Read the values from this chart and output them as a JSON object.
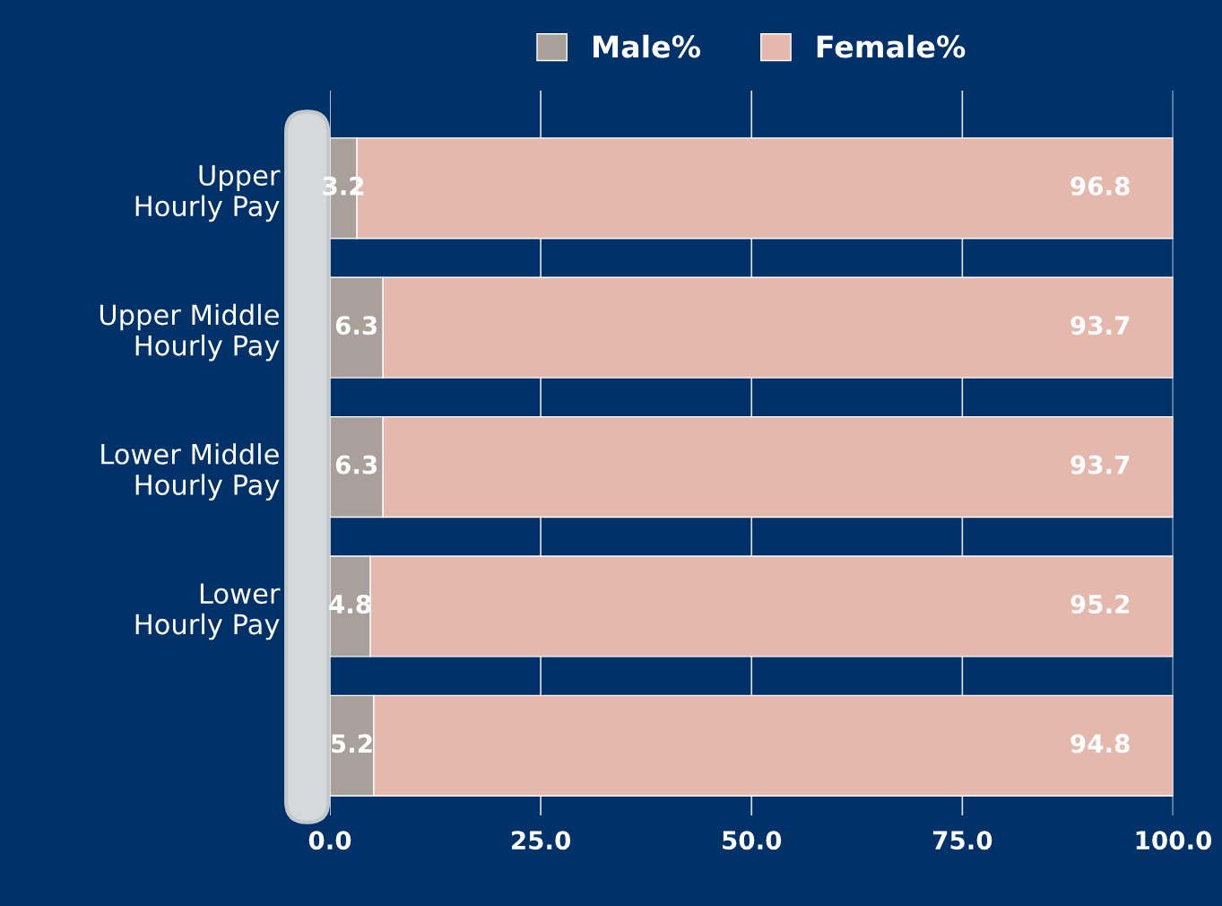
{
  "chart_data": {
    "type": "bar",
    "orientation": "horizontal",
    "stacked": true,
    "categories": [
      "Upper\nHourly Pay",
      "Upper Middle\nHourly Pay",
      "Lower Middle\nHourly Pay",
      "Lower\nHourly Pay",
      null
    ],
    "series": [
      {
        "name": "Male%",
        "color": "#a9a09b",
        "values": [
          3.2,
          6.3,
          6.3,
          4.8,
          5.2
        ]
      },
      {
        "name": "Female%",
        "color": "#e5b8ae",
        "values": [
          96.8,
          93.7,
          93.7,
          95.2,
          94.8
        ]
      }
    ],
    "xlim": [
      0,
      100
    ],
    "xticks": [
      {
        "value": 0,
        "label": "0.0"
      },
      {
        "value": 25,
        "label": "25.0"
      },
      {
        "value": 50,
        "label": "50.0"
      },
      {
        "value": 75,
        "label": "75.0"
      },
      {
        "value": 100,
        "label": "100.0"
      }
    ],
    "grid": "x",
    "legend": "top",
    "data_labels": true
  }
}
